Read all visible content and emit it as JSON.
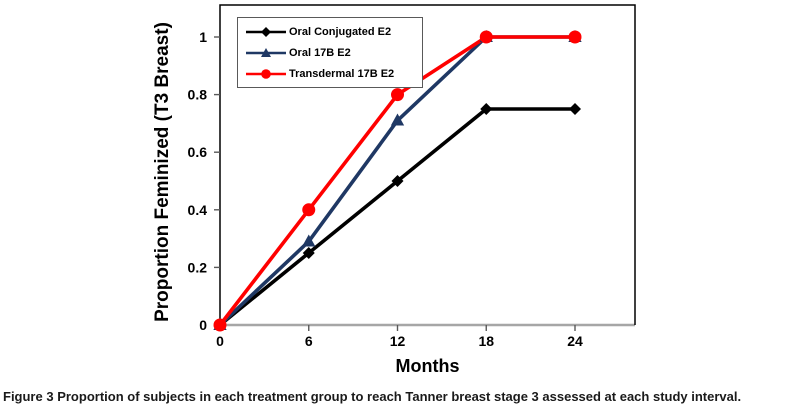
{
  "figure": {
    "caption_label": "Figure 3",
    "caption_text": "Proportion of subjects in each treatment group to reach Tanner breast stage 3 assessed at each study interval."
  },
  "chart_data": {
    "type": "line",
    "title": "",
    "xlabel": "Months",
    "ylabel": "Proportion Feminized (T3 Breast)",
    "x": [
      0,
      6,
      12,
      18,
      24
    ],
    "xticks": [
      0,
      6,
      12,
      18,
      24
    ],
    "yticks": [
      0,
      0.2,
      0.4,
      0.6,
      0.8,
      1
    ],
    "xlim": [
      0,
      28
    ],
    "ylim": [
      0,
      1.11
    ],
    "grid": false,
    "legend_position": "top-left-inside",
    "colors": {
      "axis_frame": "#000000",
      "x_axis_line": "#a6a6a6",
      "legend_border": "#595959"
    },
    "series": [
      {
        "name": "Oral Conjugated E2",
        "color": "#000000",
        "marker": "diamond",
        "values": [
          0,
          0.25,
          0.5,
          0.75,
          0.75
        ]
      },
      {
        "name": "Oral 17B E2",
        "color": "#1F3864",
        "marker": "triangle",
        "values": [
          0,
          0.29,
          0.71,
          1,
          1
        ]
      },
      {
        "name": "Transdermal 17B E2",
        "color": "#FF0000",
        "marker": "circle",
        "values": [
          0,
          0.4,
          0.8,
          1,
          1
        ]
      }
    ]
  }
}
